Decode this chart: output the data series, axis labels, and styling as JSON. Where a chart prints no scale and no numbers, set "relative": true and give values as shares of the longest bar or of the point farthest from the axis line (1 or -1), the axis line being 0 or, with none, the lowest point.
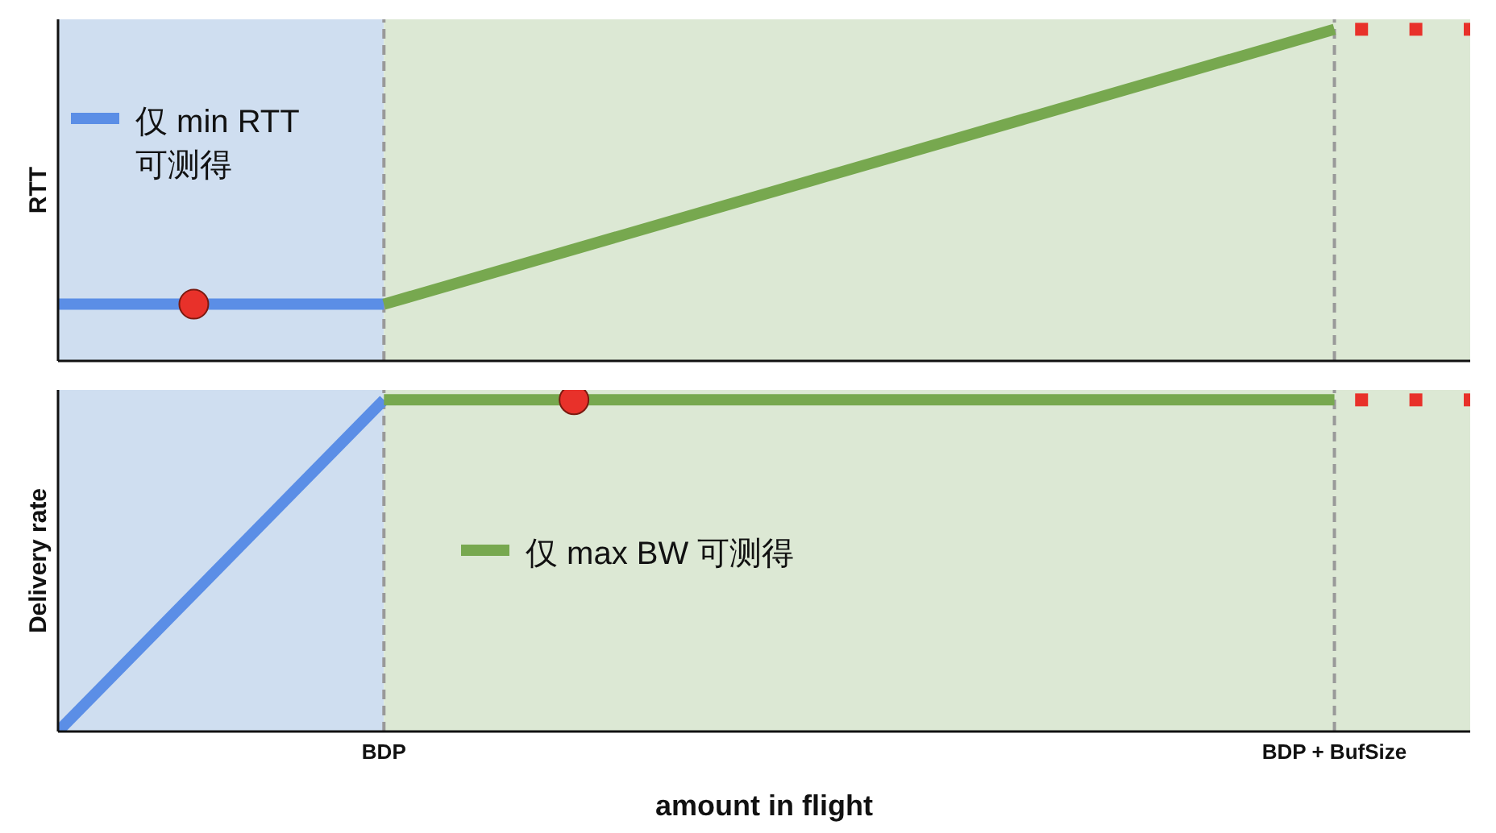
{
  "chart_data": [
    {
      "type": "line",
      "ylabel": "RTT",
      "relative": true,
      "legend": "top left",
      "tick_labels": false,
      "categories": [
        null,
        null,
        null,
        null,
        null,
        null,
        null,
        null,
        null,
        null,
        null,
        null,
        "BDP",
        null,
        null,
        null,
        null,
        null,
        null,
        null,
        null,
        null,
        null,
        null,
        null,
        null,
        null,
        null,
        null,
        null,
        null,
        null,
        null,
        null,
        null,
        null,
        null,
        null,
        null,
        null,
        null,
        null,
        null,
        null,
        null,
        null,
        null,
        "BDP + BufSize",
        null,
        null,
        null,
        null,
        null
      ],
      "ref_lines": [
        {
          "axis": "x",
          "value": "BDP",
          "color": "#999999",
          "line_style": "dashed"
        },
        {
          "axis": "x",
          "value": "BDP + BufSize",
          "color": "#999999",
          "line_style": "dashed"
        }
      ],
      "series": [
        {
          "name": "仅 min RTT 可测得",
          "type": "line",
          "color": "#5b8ee6",
          "values": [
            0.171,
            null,
            null,
            null,
            null,
            null,
            null,
            null,
            null,
            null,
            null,
            null,
            0.171,
            null,
            null,
            null,
            null,
            null,
            null,
            null,
            null,
            null,
            null,
            null,
            null,
            null,
            null,
            null,
            null,
            null,
            null,
            null,
            null,
            null,
            null,
            null,
            null,
            null,
            null,
            null,
            null,
            null,
            null,
            null,
            null,
            null,
            null,
            null,
            null,
            null,
            null,
            null,
            null
          ]
        },
        {
          "type": "line",
          "color": "#77a84f",
          "values": [
            null,
            null,
            null,
            null,
            null,
            null,
            null,
            null,
            null,
            null,
            null,
            null,
            0.171,
            null,
            null,
            null,
            null,
            null,
            null,
            null,
            null,
            null,
            null,
            null,
            null,
            null,
            null,
            null,
            null,
            null,
            null,
            null,
            null,
            null,
            null,
            null,
            null,
            null,
            null,
            null,
            null,
            null,
            null,
            null,
            null,
            null,
            null,
            1,
            null,
            null,
            null,
            null,
            null
          ]
        },
        {
          "type": "scatter",
          "marker": "circle",
          "color": "#e8312a",
          "values": [
            null,
            null,
            null,
            null,
            null,
            0.171,
            null,
            null,
            null,
            null,
            null,
            null,
            null,
            null,
            null,
            null,
            null,
            null,
            null,
            null,
            null,
            null,
            null,
            null,
            null,
            null,
            null,
            null,
            null,
            null,
            null,
            null,
            null,
            null,
            null,
            null,
            null,
            null,
            null,
            null,
            null,
            null,
            null,
            null,
            null,
            null,
            null,
            null,
            null,
            null,
            null,
            null,
            null
          ]
        },
        {
          "type": "scatter",
          "marker": "square",
          "color": "#e8312a",
          "values": [
            null,
            null,
            null,
            null,
            null,
            null,
            null,
            null,
            null,
            null,
            null,
            null,
            null,
            null,
            null,
            null,
            null,
            null,
            null,
            null,
            null,
            null,
            null,
            null,
            null,
            null,
            null,
            null,
            null,
            null,
            null,
            null,
            null,
            null,
            null,
            null,
            null,
            null,
            null,
            null,
            null,
            null,
            null,
            null,
            null,
            null,
            null,
            null,
            1,
            null,
            1,
            null,
            1
          ]
        }
      ]
    },
    {
      "type": "line",
      "ylabel": "Delivery rate",
      "xlabel": "amount in flight",
      "relative": true,
      "legend": "center",
      "categories": [
        null,
        null,
        null,
        null,
        null,
        null,
        null,
        null,
        null,
        null,
        null,
        null,
        "BDP",
        null,
        null,
        null,
        null,
        null,
        null,
        null,
        null,
        null,
        null,
        null,
        null,
        null,
        null,
        null,
        null,
        null,
        null,
        null,
        null,
        null,
        null,
        null,
        null,
        null,
        null,
        null,
        null,
        null,
        null,
        null,
        null,
        null,
        null,
        "BDP + BufSize",
        null,
        null,
        null,
        null,
        null
      ],
      "ref_lines": [
        {
          "axis": "x",
          "value": "BDP",
          "color": "#999999",
          "line_style": "dashed"
        },
        {
          "axis": "x",
          "value": "BDP + BufSize",
          "color": "#999999",
          "line_style": "dashed"
        }
      ],
      "series": [
        {
          "type": "line",
          "color": "#5b8ee6",
          "values": [
            0,
            null,
            null,
            null,
            null,
            null,
            null,
            null,
            null,
            null,
            null,
            null,
            1,
            null,
            null,
            null,
            null,
            null,
            null,
            null,
            null,
            null,
            null,
            null,
            null,
            null,
            null,
            null,
            null,
            null,
            null,
            null,
            null,
            null,
            null,
            null,
            null,
            null,
            null,
            null,
            null,
            null,
            null,
            null,
            null,
            null,
            null,
            null,
            null,
            null,
            null,
            null,
            null
          ]
        },
        {
          "name": "仅 max BW 可测得",
          "type": "line",
          "color": "#77a84f",
          "values": [
            null,
            null,
            null,
            null,
            null,
            null,
            null,
            null,
            null,
            null,
            null,
            null,
            1,
            null,
            null,
            null,
            null,
            null,
            null,
            null,
            null,
            null,
            null,
            null,
            null,
            null,
            null,
            null,
            null,
            null,
            null,
            null,
            null,
            null,
            null,
            null,
            null,
            null,
            null,
            null,
            null,
            null,
            null,
            null,
            null,
            null,
            null,
            1,
            null,
            null,
            null,
            null,
            null
          ]
        },
        {
          "type": "scatter",
          "marker": "circle",
          "color": "#e8312a",
          "values": [
            null,
            null,
            null,
            null,
            null,
            null,
            null,
            null,
            null,
            null,
            null,
            null,
            null,
            null,
            null,
            null,
            null,
            null,
            null,
            1,
            null,
            null,
            null,
            null,
            null,
            null,
            null,
            null,
            null,
            null,
            null,
            null,
            null,
            null,
            null,
            null,
            null,
            null,
            null,
            null,
            null,
            null,
            null,
            null,
            null,
            null,
            null,
            null,
            null,
            null,
            null,
            null,
            null
          ]
        },
        {
          "type": "scatter",
          "marker": "square",
          "color": "#e8312a",
          "values": [
            null,
            null,
            null,
            null,
            null,
            null,
            null,
            null,
            null,
            null,
            null,
            null,
            null,
            null,
            null,
            null,
            null,
            null,
            null,
            null,
            null,
            null,
            null,
            null,
            null,
            null,
            null,
            null,
            null,
            null,
            null,
            null,
            null,
            null,
            null,
            null,
            null,
            null,
            null,
            null,
            null,
            null,
            null,
            null,
            null,
            null,
            null,
            null,
            1,
            null,
            1,
            null,
            1
          ]
        }
      ]
    }
  ]
}
